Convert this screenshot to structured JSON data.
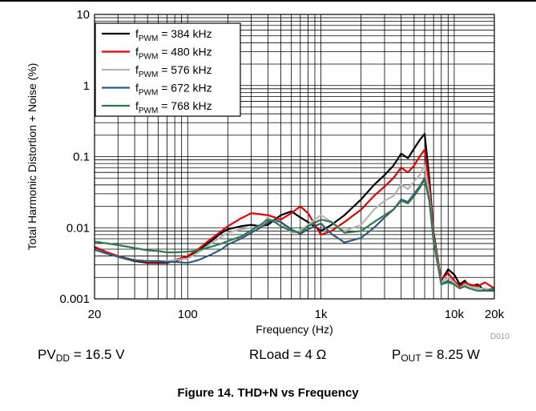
{
  "chart_data": {
    "type": "line",
    "xlabel": "Frequency (Hz)",
    "ylabel": "Total Harmonic Distortion + Noise (%)",
    "xscale": "log",
    "yscale": "log",
    "xlim": [
      20,
      20000
    ],
    "ylim": [
      0.001,
      10
    ],
    "x_ticks": [
      20,
      100,
      1000,
      10000,
      20000
    ],
    "x_tick_labels": [
      "20",
      "100",
      "1k",
      "10k",
      "20k"
    ],
    "y_ticks": [
      0.001,
      0.01,
      0.1,
      1,
      10
    ],
    "y_tick_labels": [
      "0.001",
      "0.01",
      "0.1",
      "1",
      "10"
    ],
    "grid": true,
    "legend_position": "top-left",
    "series": [
      {
        "name_base": "f",
        "name_sub": "PWM",
        "name_rest": " = 384 kHz",
        "color": "#000000",
        "x": [
          20,
          25,
          30,
          40,
          50,
          60,
          70,
          80,
          100,
          120,
          150,
          180,
          200,
          250,
          300,
          350,
          400,
          450,
          500,
          600,
          700,
          800,
          1000,
          1200,
          1500,
          2000,
          2500,
          3000,
          3500,
          4000,
          4500,
          5000,
          5500,
          6000,
          6500,
          7000,
          8000,
          9000,
          10000,
          11000,
          12000,
          13000,
          15000,
          17000,
          20000
        ],
        "y": [
          0.0052,
          0.0044,
          0.0039,
          0.0034,
          0.0032,
          0.0032,
          0.0032,
          0.0034,
          0.0038,
          0.0048,
          0.0065,
          0.0085,
          0.0095,
          0.0105,
          0.011,
          0.0105,
          0.011,
          0.013,
          0.015,
          0.017,
          0.014,
          0.012,
          0.009,
          0.011,
          0.015,
          0.025,
          0.04,
          0.055,
          0.075,
          0.11,
          0.095,
          0.13,
          0.17,
          0.21,
          0.05,
          0.0085,
          0.0018,
          0.0026,
          0.0022,
          0.0016,
          0.0018,
          0.0015,
          0.0016,
          0.0013,
          0.0014
        ]
      },
      {
        "name_base": "f",
        "name_sub": "PWM",
        "name_rest": " = 480 kHz",
        "color": "#e00000",
        "x": [
          20,
          25,
          30,
          40,
          50,
          60,
          70,
          80,
          100,
          120,
          150,
          180,
          200,
          250,
          300,
          350,
          400,
          450,
          500,
          600,
          700,
          800,
          1000,
          1200,
          1500,
          2000,
          2500,
          3000,
          3500,
          4000,
          4500,
          5000,
          5500,
          6000,
          6500,
          7000,
          8000,
          9000,
          10000,
          11000,
          12000,
          13000,
          15000,
          17000,
          20000
        ],
        "y": [
          0.0054,
          0.0045,
          0.004,
          0.0035,
          0.0033,
          0.0033,
          0.0033,
          0.0035,
          0.004,
          0.005,
          0.007,
          0.009,
          0.0105,
          0.0135,
          0.016,
          0.0155,
          0.015,
          0.014,
          0.013,
          0.016,
          0.02,
          0.016,
          0.008,
          0.009,
          0.012,
          0.018,
          0.028,
          0.038,
          0.05,
          0.07,
          0.06,
          0.075,
          0.1,
          0.125,
          0.04,
          0.0075,
          0.0019,
          0.0023,
          0.0018,
          0.0015,
          0.0017,
          0.0016,
          0.0015,
          0.0017,
          0.0014
        ]
      },
      {
        "name_base": "f",
        "name_sub": "PWM",
        "name_rest": " = 576 kHz",
        "color": "#b4b4b4",
        "x": [
          20,
          25,
          30,
          40,
          50,
          60,
          70,
          80,
          100,
          120,
          150,
          180,
          200,
          250,
          300,
          350,
          400,
          450,
          500,
          600,
          700,
          800,
          1000,
          1200,
          1500,
          2000,
          2500,
          3000,
          3500,
          4000,
          4500,
          5000,
          5500,
          6000,
          6500,
          7000,
          8000,
          9000,
          10000,
          11000,
          12000,
          13000,
          15000,
          17000,
          20000
        ],
        "y": [
          0.005,
          0.0043,
          0.0039,
          0.0035,
          0.0034,
          0.0034,
          0.0034,
          0.0035,
          0.0037,
          0.0045,
          0.006,
          0.0075,
          0.0085,
          0.0095,
          0.01,
          0.0105,
          0.014,
          0.012,
          0.012,
          0.0085,
          0.009,
          0.011,
          0.015,
          0.012,
          0.009,
          0.011,
          0.018,
          0.024,
          0.028,
          0.04,
          0.035,
          0.045,
          0.055,
          0.075,
          0.03,
          0.007,
          0.0017,
          0.002,
          0.0017,
          0.0014,
          0.0016,
          0.0015,
          0.0014,
          0.0014,
          0.0013
        ]
      },
      {
        "name_base": "f",
        "name_sub": "PWM",
        "name_rest": " = 672 kHz",
        "color": "#2e5a80",
        "x": [
          20,
          25,
          30,
          40,
          50,
          60,
          70,
          80,
          100,
          120,
          150,
          180,
          200,
          250,
          300,
          350,
          400,
          450,
          500,
          600,
          700,
          800,
          1000,
          1200,
          1500,
          2000,
          2500,
          3000,
          3500,
          4000,
          4500,
          5000,
          5500,
          6000,
          6500,
          7000,
          8000,
          9000,
          10000,
          11000,
          12000,
          13000,
          15000,
          17000,
          20000
        ],
        "y": [
          0.0049,
          0.0043,
          0.0039,
          0.0035,
          0.0034,
          0.0034,
          0.0033,
          0.0033,
          0.0032,
          0.0035,
          0.0042,
          0.005,
          0.0058,
          0.007,
          0.0085,
          0.01,
          0.012,
          0.013,
          0.012,
          0.0095,
          0.0082,
          0.0095,
          0.0115,
          0.0082,
          0.0062,
          0.0072,
          0.01,
          0.014,
          0.018,
          0.025,
          0.023,
          0.03,
          0.038,
          0.05,
          0.025,
          0.0065,
          0.0016,
          0.0018,
          0.0016,
          0.0014,
          0.0015,
          0.0014,
          0.0013,
          0.0013,
          0.0013
        ]
      },
      {
        "name_base": "f",
        "name_sub": "PWM",
        "name_rest": " = 768 kHz",
        "color": "#2f7a4e",
        "x": [
          20,
          25,
          30,
          40,
          50,
          60,
          70,
          80,
          100,
          120,
          150,
          180,
          200,
          250,
          300,
          350,
          400,
          450,
          500,
          600,
          700,
          800,
          1000,
          1200,
          1500,
          2000,
          2500,
          3000,
          3500,
          4000,
          4500,
          5000,
          5500,
          6000,
          6500,
          7000,
          8000,
          9000,
          10000,
          11000,
          12000,
          13000,
          15000,
          17000,
          20000
        ],
        "y": [
          0.0064,
          0.006,
          0.0057,
          0.0052,
          0.0048,
          0.0047,
          0.0045,
          0.0045,
          0.0046,
          0.0048,
          0.0054,
          0.006,
          0.0065,
          0.0075,
          0.0092,
          0.011,
          0.013,
          0.012,
          0.0105,
          0.009,
          0.0085,
          0.0105,
          0.013,
          0.012,
          0.0085,
          0.009,
          0.012,
          0.015,
          0.018,
          0.024,
          0.022,
          0.028,
          0.036,
          0.048,
          0.024,
          0.0065,
          0.0016,
          0.0017,
          0.0016,
          0.0014,
          0.0015,
          0.0014,
          0.0013,
          0.0013,
          0.0014
        ]
      }
    ]
  },
  "code": "D010",
  "conditions": {
    "pvdd_base": "PV",
    "pvdd_sub": "DD",
    "pvdd_rest": " = 16.5 V",
    "rload": "RLoad = 4 Ω",
    "pout_base": "P",
    "pout_sub": "OUT",
    "pout_rest": " = 8.25 W"
  },
  "caption": "Figure 14. THD+N vs Frequency"
}
